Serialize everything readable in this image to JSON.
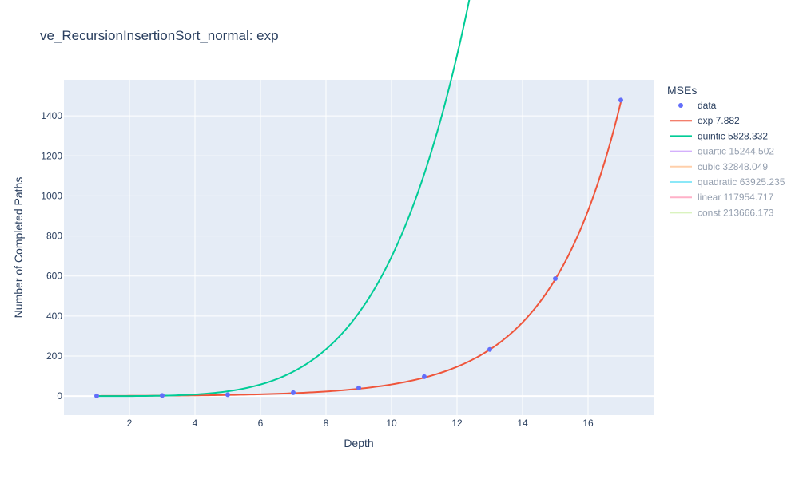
{
  "chart_data": {
    "type": "line",
    "title": "ve_RecursionInsertionSort_normal: exp",
    "xlabel": "Depth",
    "ylabel": "Number of Completed Paths",
    "xlim": [
      0,
      18
    ],
    "ylim": [
      -95,
      1580
    ],
    "x_ticks": [
      2,
      4,
      6,
      8,
      10,
      12,
      14,
      16
    ],
    "y_ticks": [
      0,
      200,
      400,
      600,
      800,
      1000,
      1200,
      1400
    ],
    "grid": true,
    "legend_title": "MSEs",
    "legend_position": "right",
    "series": [
      {
        "name": "data",
        "mode": "markers",
        "color": "#636efa",
        "visible": true,
        "x": [
          1,
          3,
          5,
          7,
          9,
          11,
          13,
          15,
          17
        ],
        "y": [
          1,
          3,
          7,
          17,
          41,
          97,
          233,
          587,
          1479
        ]
      },
      {
        "name": "exp 7.882",
        "mode": "line",
        "curve": "exp",
        "params": [
          0.58,
          0.461
        ],
        "color": "#ef553b",
        "visible": true
      },
      {
        "name": "quintic 5828.332",
        "mode": "line",
        "curve": "poly",
        "params": [
          0,
          0.00055,
          0.0055,
          0.006,
          0.0063
        ],
        "color": "#00cc96",
        "visible": true
      },
      {
        "name": "quartic 15244.502",
        "mode": "line",
        "color": "#ab63fa",
        "visible": false
      },
      {
        "name": "cubic 32848.049",
        "mode": "line",
        "color": "#ffa15a",
        "visible": false
      },
      {
        "name": "quadratic 63925.235",
        "mode": "line",
        "color": "#19d3f3",
        "visible": false
      },
      {
        "name": "linear 117954.717",
        "mode": "line",
        "color": "#ff6692",
        "visible": false
      },
      {
        "name": "const 213666.173",
        "mode": "line",
        "color": "#b6e880",
        "visible": false
      }
    ]
  }
}
